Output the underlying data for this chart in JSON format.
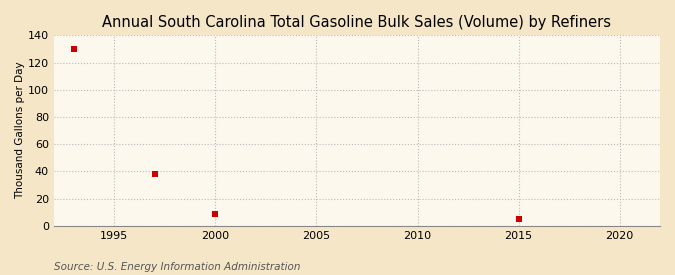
{
  "title": "Annual South Carolina Total Gasoline Bulk Sales (Volume) by Refiners",
  "ylabel": "Thousand Gallons per Day",
  "source": "Source: U.S. Energy Information Administration",
  "x_data": [
    1993,
    1997,
    2000,
    2015
  ],
  "y_data": [
    130,
    38,
    9,
    5
  ],
  "marker_color": "#cc0000",
  "marker": "s",
  "marker_size": 4,
  "xlim": [
    1992,
    2022
  ],
  "ylim": [
    0,
    140
  ],
  "yticks": [
    0,
    20,
    40,
    60,
    80,
    100,
    120,
    140
  ],
  "xticks": [
    1995,
    2000,
    2005,
    2010,
    2015,
    2020
  ],
  "fig_background_color": "#f5e6c8",
  "plot_background_color": "#fdf8ee",
  "grid_color": "#bbbbbb",
  "title_fontsize": 10.5,
  "axis_label_fontsize": 7.5,
  "tick_fontsize": 8,
  "source_fontsize": 7.5
}
